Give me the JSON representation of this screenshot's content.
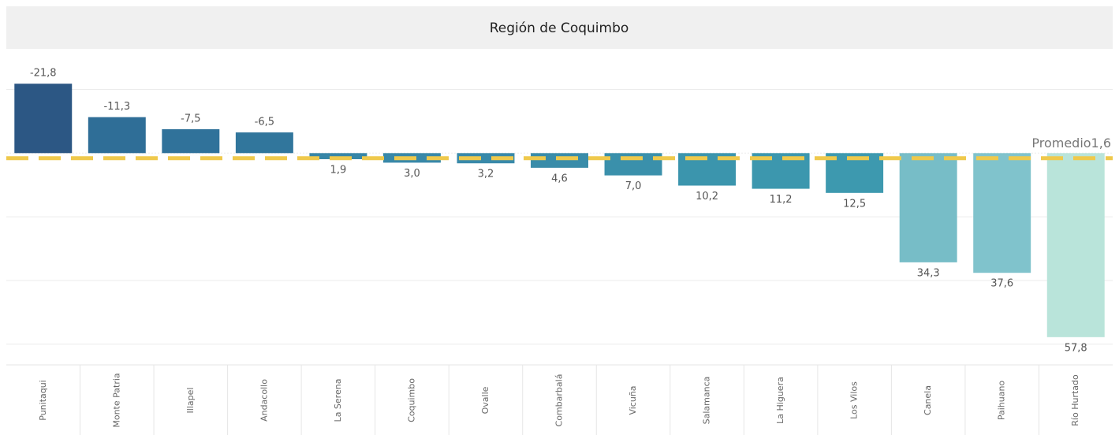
{
  "chart_data": {
    "type": "bar",
    "title": "Región de Coquimbo",
    "categories": [
      "Punitaqui",
      "Monte Patria",
      "Illapel",
      "Andacollo",
      "La Serena",
      "Coquimbo",
      "Ovalle",
      "Combarbalá",
      "Vicuña",
      "Salamanca",
      "La Higuera",
      "Los Vilos",
      "Canela",
      "Paihuano",
      "Río Hurtado"
    ],
    "values": [
      -21.8,
      -11.3,
      -7.5,
      -6.5,
      1.9,
      3.0,
      3.2,
      4.6,
      7.0,
      10.2,
      11.2,
      12.5,
      34.3,
      37.6,
      57.8
    ],
    "value_labels": [
      "-21,8",
      "-11,3",
      "-7,5",
      "-6,5",
      "1,9",
      "3,0",
      "3,2",
      "4,6",
      "7,0",
      "10,2",
      "11,2",
      "12,5",
      "34,3",
      "37,6",
      "57,8"
    ],
    "colors": [
      "#2c5784",
      "#2f6e97",
      "#30729a",
      "#31769c",
      "#3786a7",
      "#3888a8",
      "#3889a9",
      "#398ca9",
      "#3a90ab",
      "#3b95ad",
      "#3c97ae",
      "#3d99af",
      "#77bdc7",
      "#80c3cc",
      "#b9e4da"
    ],
    "ylim": [
      -32,
      66.5
    ],
    "y_reversed": true,
    "yticks": [
      -20,
      0,
      20,
      40,
      60
    ],
    "grid": true,
    "reference_line": {
      "label": "Promedio",
      "value": 1.6,
      "value_label": "1,6",
      "color": "#efc94c"
    }
  }
}
